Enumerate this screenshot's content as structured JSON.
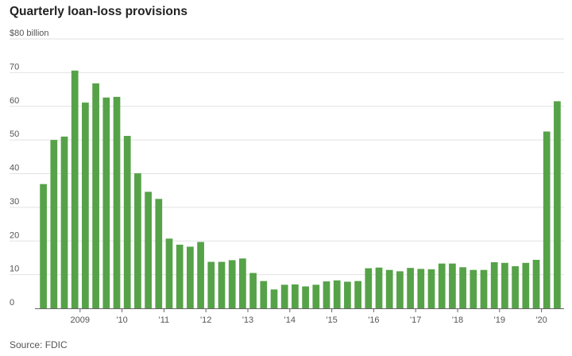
{
  "chart_data": {
    "type": "bar",
    "title": "Quarterly loan-loss provisions",
    "source": "Source: FDIC",
    "y_top_label": "$80 billion",
    "y_ticks": [
      0,
      10,
      20,
      30,
      40,
      50,
      60,
      70,
      80
    ],
    "ylim": [
      0,
      80
    ],
    "grid": true,
    "bar_color": "#56a248",
    "x_tick_labels": [
      {
        "label": "2009",
        "index": 4
      },
      {
        "label": "'10",
        "index": 8
      },
      {
        "label": "'11",
        "index": 12
      },
      {
        "label": "'12",
        "index": 16
      },
      {
        "label": "'13",
        "index": 20
      },
      {
        "label": "'14",
        "index": 24
      },
      {
        "label": "'15",
        "index": 28
      },
      {
        "label": "'16",
        "index": 32
      },
      {
        "label": "'17",
        "index": 36
      },
      {
        "label": "'18",
        "index": 40
      },
      {
        "label": "'19",
        "index": 44
      },
      {
        "label": "'20",
        "index": 48
      }
    ],
    "values": [
      36.9,
      50.0,
      51.0,
      70.6,
      61.1,
      66.8,
      62.6,
      62.8,
      51.2,
      40.1,
      34.6,
      32.5,
      20.7,
      18.9,
      18.3,
      19.7,
      13.8,
      13.8,
      14.3,
      14.8,
      10.5,
      8.1,
      5.6,
      7.0,
      7.1,
      6.5,
      7.0,
      8.0,
      8.3,
      7.9,
      8.1,
      11.9,
      12.1,
      11.4,
      11.0,
      12.0,
      11.7,
      11.6,
      13.3,
      13.3,
      12.2,
      11.4,
      11.4,
      13.7,
      13.5,
      12.5,
      13.5,
      14.4,
      52.5,
      61.5
    ]
  }
}
